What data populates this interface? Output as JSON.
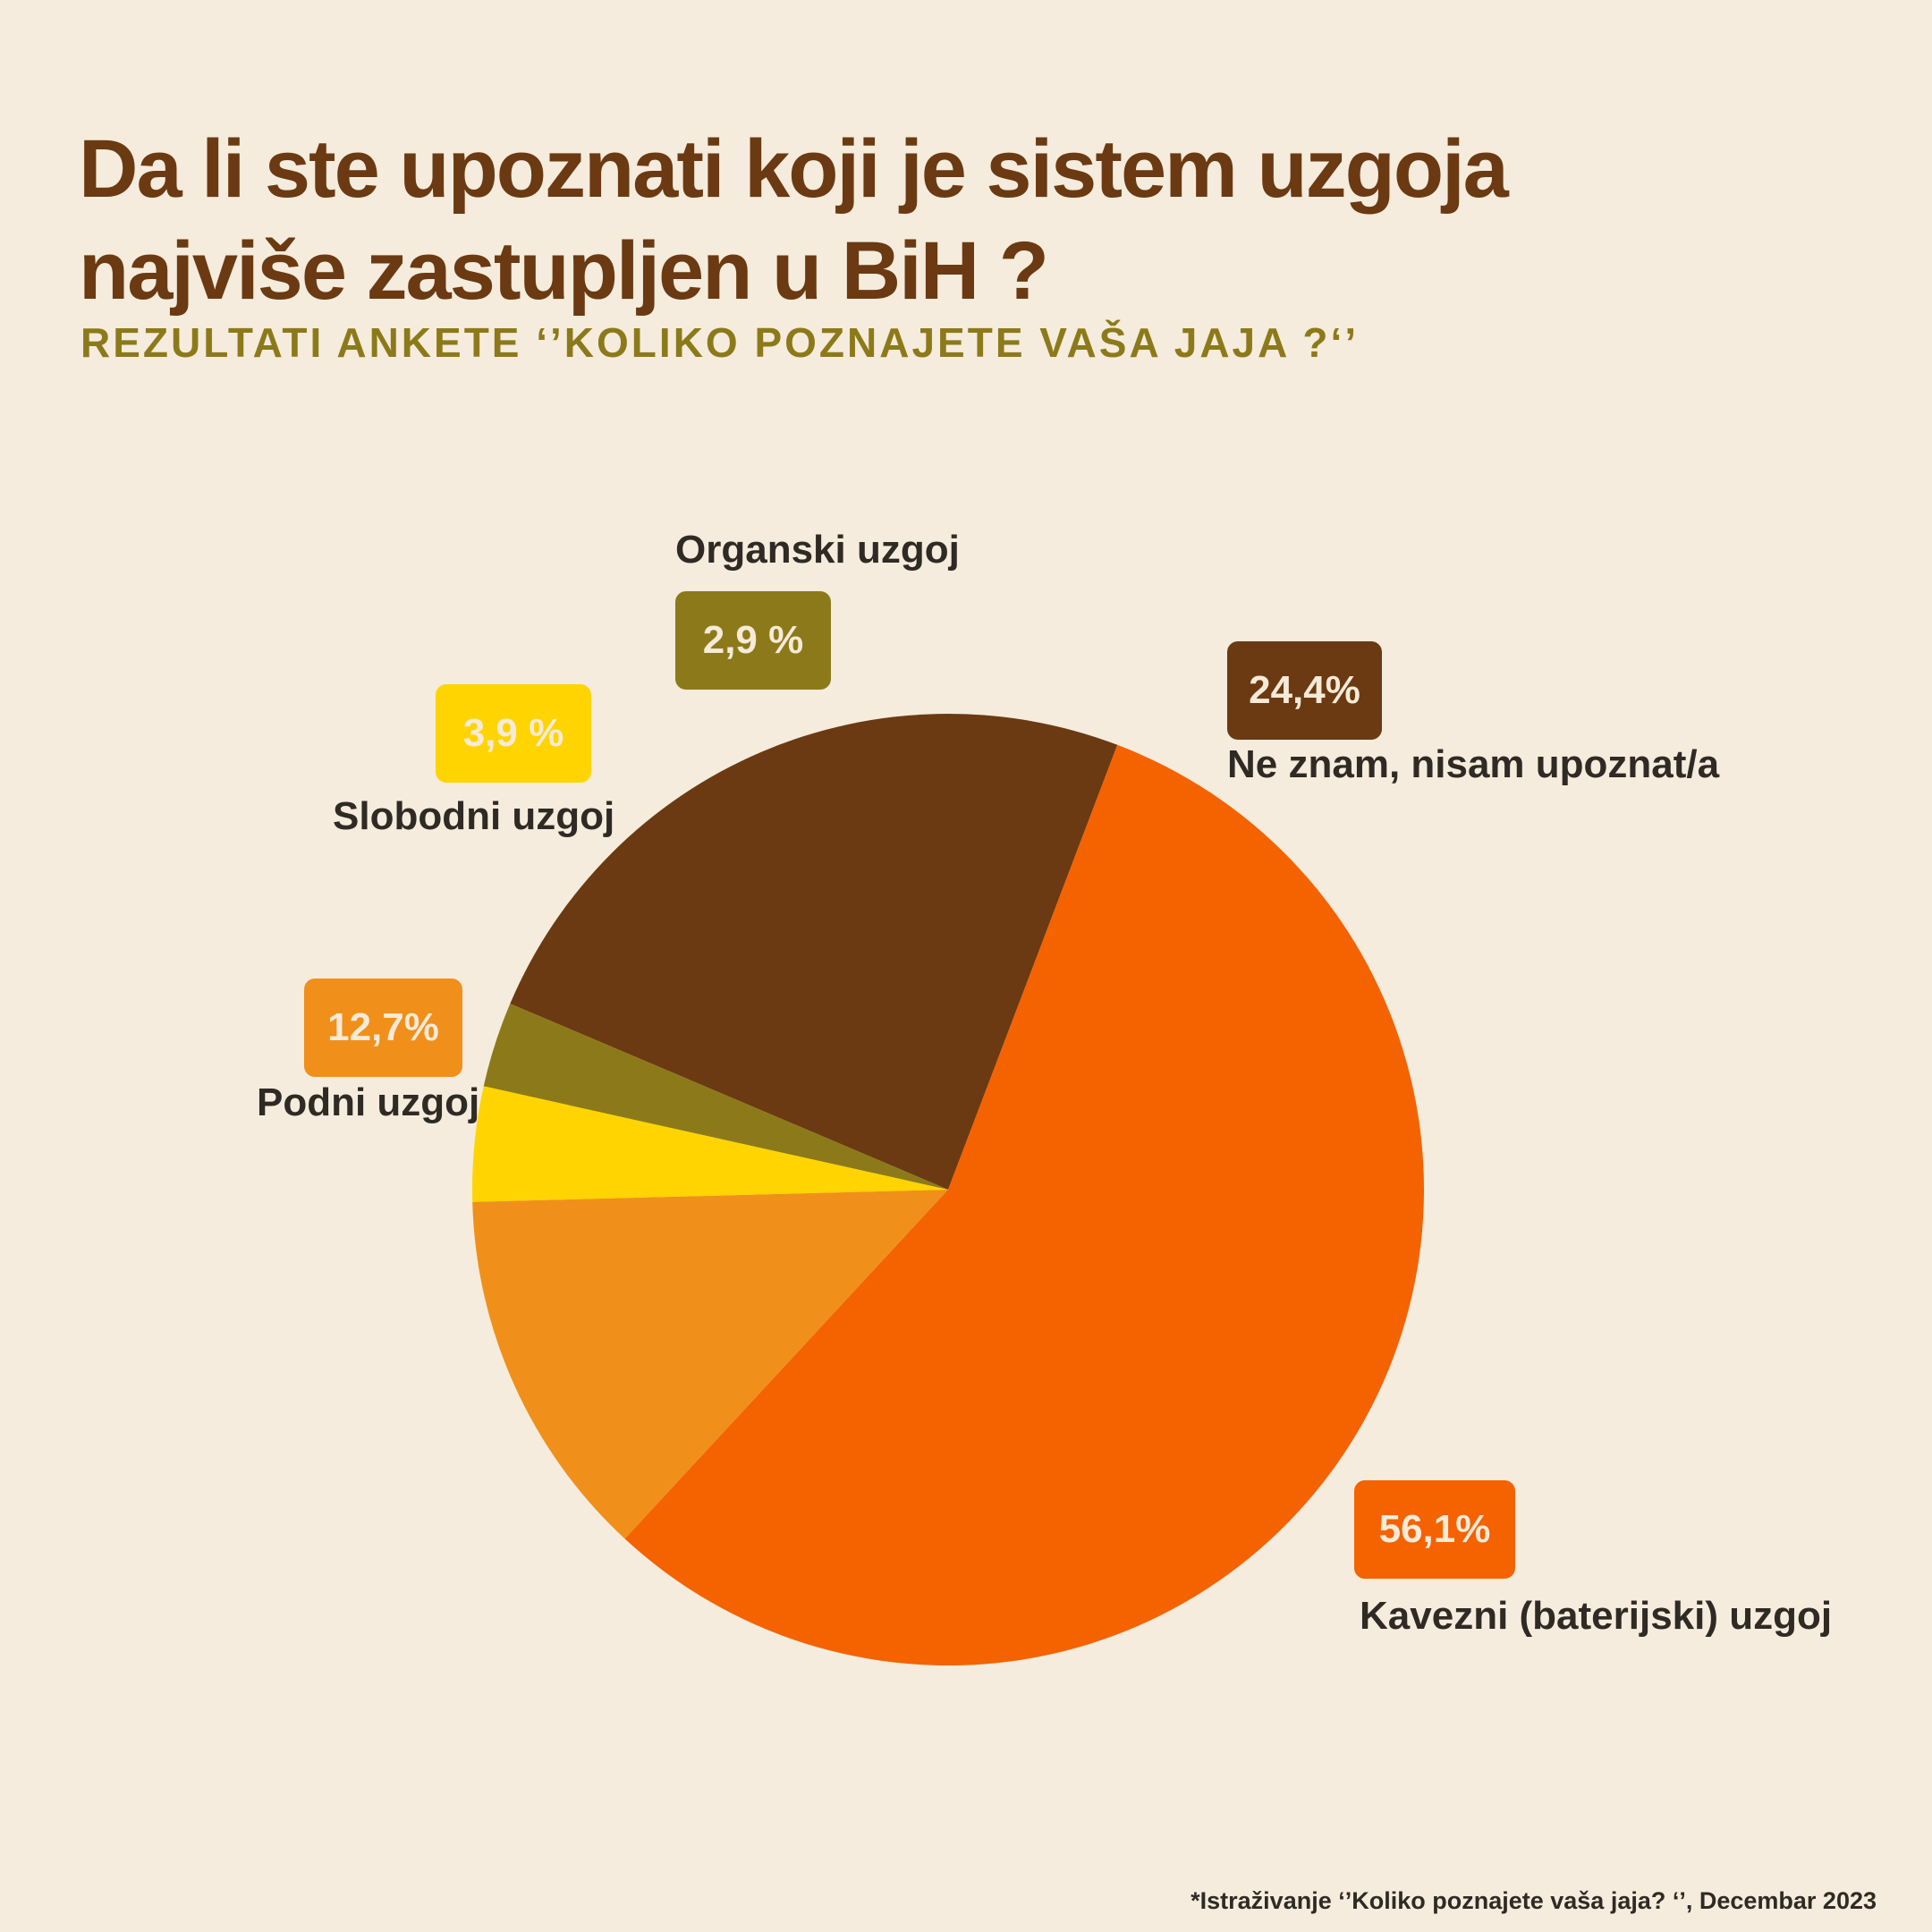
{
  "colors": {
    "background": "#f5ecdd",
    "title": "#6b3a12",
    "subtitle": "#8c7a1a",
    "slices": [
      "#6b3a12",
      "#f56200",
      "#f0901a",
      "#ffd400",
      "#8c7a1a"
    ]
  },
  "chart_data": {
    "type": "pie",
    "title": "Da li ste upoznati koji je sistem uzgoja najviše zastupljen u BiH ?",
    "subtitle": "REZULTATI ANKETE ‘’KOLIKO POZNAJETE VAŠA JAJA ?‘’",
    "slices": [
      {
        "name": "Ne znam, nisam upoznat/a",
        "value": 24.4,
        "display": "24,4%"
      },
      {
        "name": "Kavezni (baterijski) uzgoj",
        "value": 56.1,
        "display": "56,1%"
      },
      {
        "name": "Podni uzgoj",
        "value": 12.7,
        "display": "12,7%"
      },
      {
        "name": "Slobodni uzgoj",
        "value": 3.9,
        "display": "3,9 %"
      },
      {
        "name": "Organski uzgoj",
        "value": 2.9,
        "display": "2,9 %"
      }
    ],
    "footnote": "*Istraživanje ‘’Koliko poznajete vaša jaja? ‘’,  Decembar 2023"
  }
}
